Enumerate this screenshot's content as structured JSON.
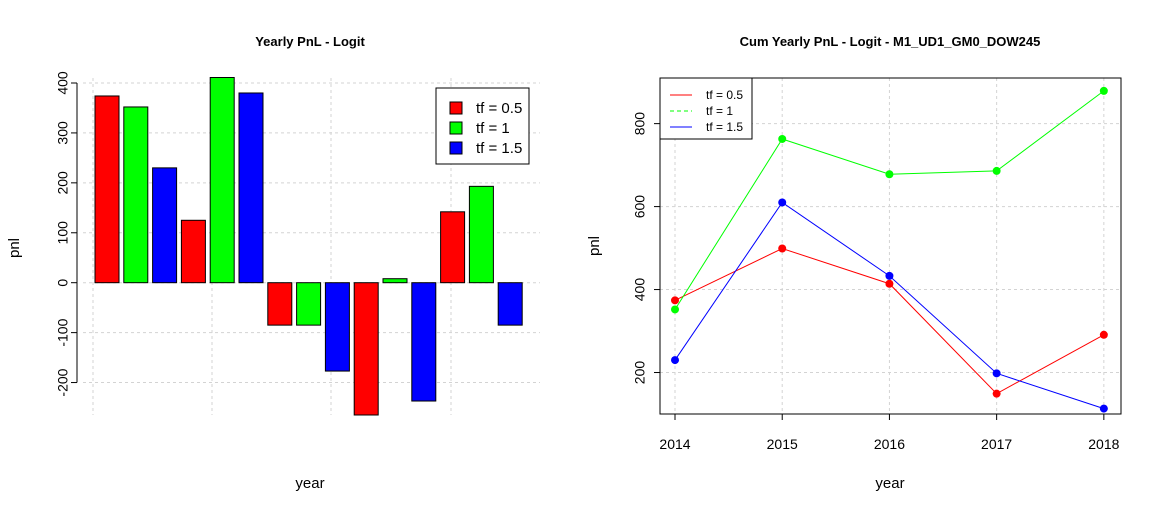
{
  "chart_data": [
    {
      "type": "bar",
      "title": "Yearly PnL - Logit",
      "xlabel": "year",
      "ylabel": "pnl",
      "ylim": [
        -265,
        410
      ],
      "yticks": [
        -200,
        -100,
        0,
        100,
        200,
        300,
        400
      ],
      "grid": true,
      "legend_position": "top-right",
      "series": [
        {
          "name": "tf = 0.5",
          "color": "#ff0000"
        },
        {
          "name": "tf = 1",
          "color": "#00ff00"
        },
        {
          "name": "tf = 1.5",
          "color": "#0000ff"
        }
      ],
      "bars": [
        {
          "series": 0,
          "value": 374
        },
        {
          "series": 1,
          "value": 352
        },
        {
          "series": 2,
          "value": 230
        },
        {
          "series": 0,
          "value": 125
        },
        {
          "series": 1,
          "value": 411
        },
        {
          "series": 2,
          "value": 380
        },
        {
          "series": 0,
          "value": -85
        },
        {
          "series": 1,
          "value": -85
        },
        {
          "series": 2,
          "value": -177
        },
        {
          "series": 0,
          "value": -265
        },
        {
          "series": 1,
          "value": 8
        },
        {
          "series": 2,
          "value": -237
        },
        {
          "series": 0,
          "value": 142
        },
        {
          "series": 1,
          "value": 193
        },
        {
          "series": 2,
          "value": -85
        }
      ]
    },
    {
      "type": "line",
      "title": "Cum Yearly PnL - Logit - M1_UD1_GM0_DOW245",
      "xlabel": "year",
      "ylabel": "pnl",
      "x": [
        2014,
        2015,
        2016,
        2017,
        2018
      ],
      "xlim": [
        2013.86,
        2018.16
      ],
      "ylim": [
        100,
        910
      ],
      "yticks": [
        200,
        400,
        600,
        800
      ],
      "grid": true,
      "legend_position": "top-left",
      "series": [
        {
          "name": "tf = 0.5",
          "color": "#ff0000",
          "values": [
            374,
            499,
            414,
            149,
            291
          ]
        },
        {
          "name": "tf = 1",
          "color": "#00ff00",
          "values": [
            352,
            763,
            678,
            686,
            879
          ]
        },
        {
          "name": "tf = 1.5",
          "color": "#0000ff",
          "values": [
            230,
            610,
            433,
            198,
            113
          ]
        }
      ]
    }
  ]
}
